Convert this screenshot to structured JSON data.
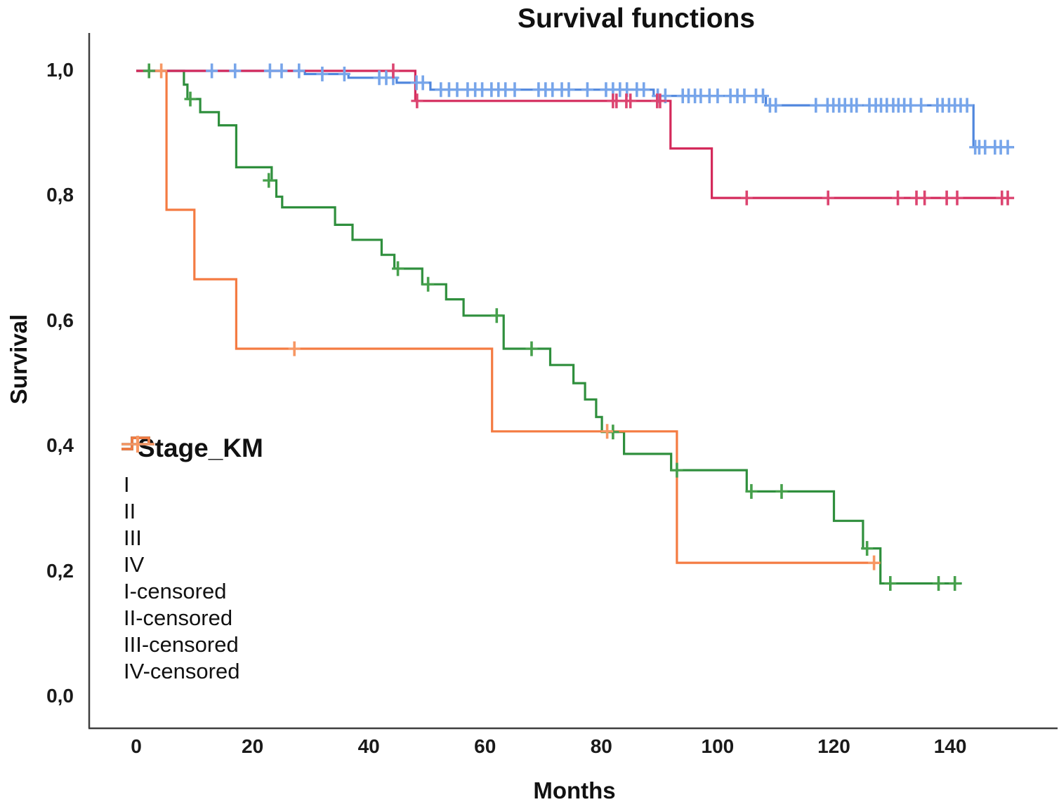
{
  "legend": {
    "title": "Stage_KM",
    "entries": [
      {
        "id": "I",
        "label": "I",
        "color": "#4F86DD",
        "type": "step"
      },
      {
        "id": "II",
        "label": "II",
        "color": "#D42A5B",
        "type": "step"
      },
      {
        "id": "III",
        "label": "III",
        "color": "#2F8F3D",
        "type": "step"
      },
      {
        "id": "IV",
        "label": "IV",
        "color": "#F47B42",
        "type": "step"
      },
      {
        "id": "I-censored",
        "label": "I-censored",
        "color": "#77A5EA",
        "type": "censor"
      },
      {
        "id": "II-censored",
        "label": "II-censored",
        "color": "#DC4470",
        "type": "censor"
      },
      {
        "id": "III-censored",
        "label": "III-censored",
        "color": "#46A04C",
        "type": "censor"
      },
      {
        "id": "IV-censored",
        "label": "IV-censored",
        "color": "#F79763",
        "type": "censor"
      }
    ]
  },
  "chart_data": {
    "type": "line",
    "subtype": "kaplan-meier-step",
    "title": "Survival functions",
    "xlabel": "Months",
    "ylabel": "Survival",
    "xlim": [
      -8,
      158
    ],
    "ylim": [
      0,
      1.05
    ],
    "grid": false,
    "legend_position": "inside-left-lower",
    "x_ticks": [
      0,
      20,
      40,
      60,
      80,
      100,
      120,
      140
    ],
    "x_tick_labels": [
      "0",
      "20",
      "40",
      "60",
      "80",
      "100",
      "120",
      "140"
    ],
    "y_ticks": [
      0.0,
      0.2,
      0.4,
      0.6,
      0.8,
      1.0
    ],
    "y_tick_labels": [
      "0,0",
      "0,2",
      "0,4",
      "0,6",
      "0,8",
      "1,0"
    ],
    "series": [
      {
        "name": "I",
        "color": "#4F86DD",
        "censor_color": "#77A5EA",
        "steps": [
          [
            0,
            1.0
          ],
          [
            29,
            0.995
          ],
          [
            36.5,
            0.989
          ],
          [
            44.8,
            0.981
          ],
          [
            50.6,
            0.97
          ],
          [
            89,
            0.96
          ],
          [
            108.3,
            0.945
          ],
          [
            144,
            0.878
          ]
        ],
        "end_x": 151,
        "censors": [
          [
            13,
            1.0
          ],
          [
            17,
            1.0
          ],
          [
            23,
            1.0
          ],
          [
            25,
            1.0
          ],
          [
            28,
            1.0
          ],
          [
            32,
            0.995
          ],
          [
            35.8,
            0.995
          ],
          [
            41.8,
            0.989
          ],
          [
            43,
            0.989
          ],
          [
            44.2,
            0.989
          ],
          [
            48.2,
            0.981
          ],
          [
            49.3,
            0.981
          ],
          [
            52.4,
            0.97
          ],
          [
            53.8,
            0.97
          ],
          [
            55.2,
            0.97
          ],
          [
            57,
            0.97
          ],
          [
            58.3,
            0.97
          ],
          [
            59.5,
            0.97
          ],
          [
            61.1,
            0.97
          ],
          [
            62.3,
            0.97
          ],
          [
            63.5,
            0.97
          ],
          [
            65.1,
            0.97
          ],
          [
            69.2,
            0.97
          ],
          [
            70.4,
            0.97
          ],
          [
            71.6,
            0.97
          ],
          [
            73.2,
            0.97
          ],
          [
            74.4,
            0.97
          ],
          [
            77.6,
            0.97
          ],
          [
            80.8,
            0.97
          ],
          [
            82,
            0.97
          ],
          [
            83.2,
            0.97
          ],
          [
            84.4,
            0.97
          ],
          [
            86.1,
            0.97
          ],
          [
            87.3,
            0.97
          ],
          [
            89.7,
            0.96
          ],
          [
            91,
            0.96
          ],
          [
            94,
            0.96
          ],
          [
            95,
            0.96
          ],
          [
            96.1,
            0.96
          ],
          [
            97.1,
            0.96
          ],
          [
            98.6,
            0.96
          ],
          [
            100,
            0.96
          ],
          [
            102.2,
            0.96
          ],
          [
            103.4,
            0.96
          ],
          [
            104.6,
            0.96
          ],
          [
            106.6,
            0.96
          ],
          [
            107.8,
            0.96
          ],
          [
            109,
            0.945
          ],
          [
            110,
            0.945
          ],
          [
            116.9,
            0.945
          ],
          [
            118.9,
            0.945
          ],
          [
            119.9,
            0.945
          ],
          [
            120.9,
            0.945
          ],
          [
            121.9,
            0.945
          ],
          [
            123,
            0.945
          ],
          [
            123.9,
            0.945
          ],
          [
            126.1,
            0.945
          ],
          [
            127.2,
            0.945
          ],
          [
            128.1,
            0.945
          ],
          [
            129.1,
            0.945
          ],
          [
            130.2,
            0.945
          ],
          [
            131.1,
            0.945
          ],
          [
            132.1,
            0.945
          ],
          [
            133.2,
            0.945
          ],
          [
            135,
            0.945
          ],
          [
            137.8,
            0.945
          ],
          [
            138.7,
            0.945
          ],
          [
            139.8,
            0.945
          ],
          [
            140.8,
            0.945
          ],
          [
            141.8,
            0.945
          ],
          [
            142.9,
            0.945
          ],
          [
            144.3,
            0.878
          ],
          [
            145,
            0.878
          ],
          [
            146,
            0.878
          ],
          [
            147.7,
            0.878
          ],
          [
            148.7,
            0.878
          ],
          [
            149.9,
            0.878
          ]
        ]
      },
      {
        "name": "II",
        "color": "#D42A5B",
        "censor_color": "#DC4470",
        "steps": [
          [
            0,
            1.0
          ],
          [
            48,
            0.952
          ],
          [
            91.9,
            0.876
          ],
          [
            99,
            0.797
          ]
        ],
        "end_x": 151,
        "censors": [
          [
            44.2,
            1.0
          ],
          [
            48.3,
            0.952
          ],
          [
            82,
            0.952
          ],
          [
            82.6,
            0.952
          ],
          [
            84.3,
            0.952
          ],
          [
            85,
            0.952
          ],
          [
            89.6,
            0.952
          ],
          [
            90.1,
            0.952
          ],
          [
            105,
            0.797
          ],
          [
            119,
            0.797
          ],
          [
            131,
            0.797
          ],
          [
            134.2,
            0.797
          ],
          [
            135.6,
            0.797
          ],
          [
            139.4,
            0.797
          ],
          [
            141.2,
            0.797
          ],
          [
            148.9,
            0.797
          ],
          [
            149.9,
            0.797
          ]
        ]
      },
      {
        "name": "III",
        "color": "#2F8F3D",
        "censor_color": "#46A04C",
        "steps": [
          [
            0,
            1.0
          ],
          [
            8.2,
            0.978
          ],
          [
            8.8,
            0.955
          ],
          [
            11,
            0.934
          ],
          [
            14.2,
            0.913
          ],
          [
            17.2,
            0.846
          ],
          [
            23.3,
            0.825
          ],
          [
            24.1,
            0.799
          ],
          [
            25.1,
            0.782
          ],
          [
            34.2,
            0.754
          ],
          [
            37.2,
            0.73
          ],
          [
            42.2,
            0.706
          ],
          [
            44.4,
            0.684
          ],
          [
            49.2,
            0.659
          ],
          [
            53.3,
            0.635
          ],
          [
            56.3,
            0.609
          ],
          [
            63.2,
            0.556
          ],
          [
            71.2,
            0.53
          ],
          [
            75.2,
            0.501
          ],
          [
            77.2,
            0.475
          ],
          [
            79.1,
            0.447
          ],
          [
            80.1,
            0.423
          ],
          [
            83.9,
            0.388
          ],
          [
            92,
            0.362
          ],
          [
            105,
            0.328
          ],
          [
            120,
            0.281
          ],
          [
            125,
            0.237
          ],
          [
            128,
            0.181
          ]
        ],
        "end_x": 142,
        "censors": [
          [
            2.2,
            1.0
          ],
          [
            9.3,
            0.955
          ],
          [
            22.8,
            0.825
          ],
          [
            45,
            0.684
          ],
          [
            50.2,
            0.659
          ],
          [
            62,
            0.609
          ],
          [
            68,
            0.556
          ],
          [
            82,
            0.423
          ],
          [
            93,
            0.362
          ],
          [
            105.8,
            0.328
          ],
          [
            111,
            0.328
          ],
          [
            125.7,
            0.237
          ],
          [
            129.7,
            0.181
          ],
          [
            138,
            0.181
          ],
          [
            140.8,
            0.181
          ]
        ]
      },
      {
        "name": "IV",
        "color": "#F47B42",
        "censor_color": "#F79763",
        "steps": [
          [
            0,
            1.0
          ],
          [
            5.2,
            0.778
          ],
          [
            10,
            0.667
          ],
          [
            17.2,
            0.556
          ],
          [
            61.2,
            0.424
          ],
          [
            93,
            0.214
          ]
        ],
        "end_x": 128,
        "censors": [
          [
            4.3,
            1.0
          ],
          [
            27.2,
            0.556
          ],
          [
            81,
            0.424
          ],
          [
            126.9,
            0.214
          ]
        ]
      }
    ]
  }
}
